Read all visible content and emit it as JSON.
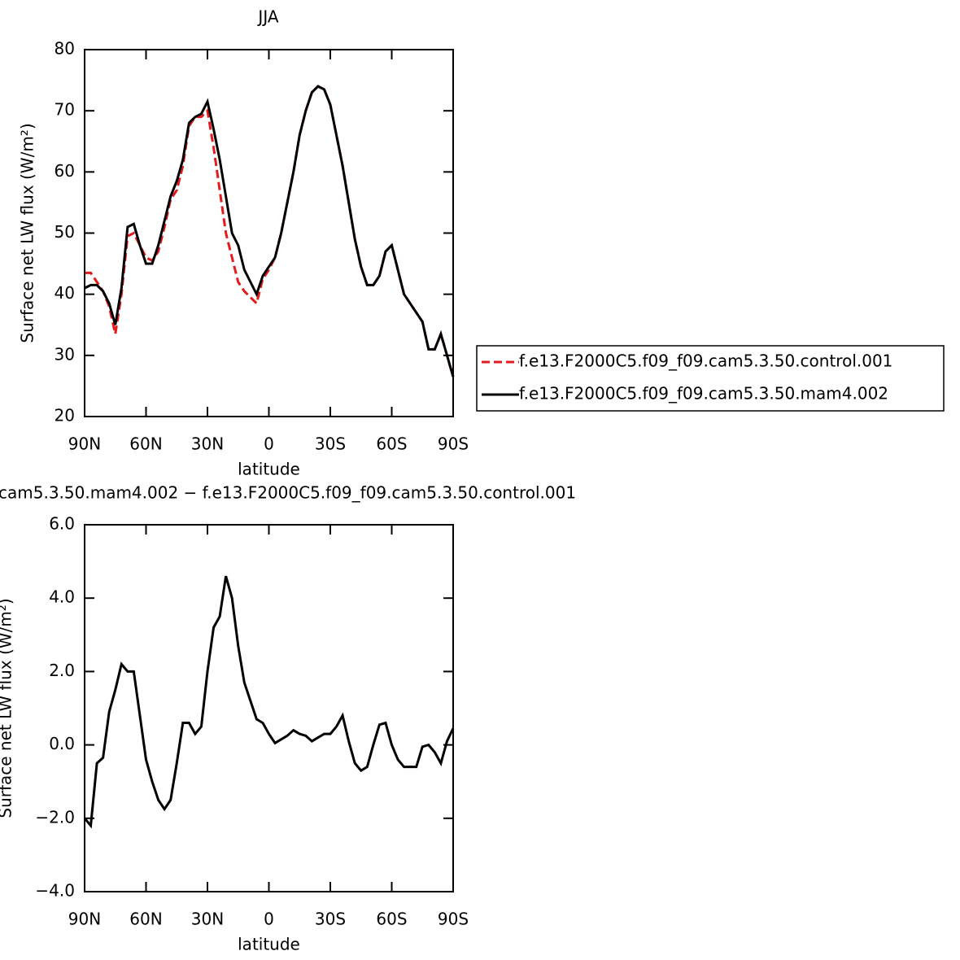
{
  "chart_data": [
    {
      "type": "line",
      "title": "JJA",
      "x_label": "latitude",
      "y_label": "Surface net LW flux (W/m²)",
      "x": [
        90,
        87,
        84,
        81,
        78,
        75,
        72,
        69,
        66,
        63,
        60,
        57,
        54,
        51,
        48,
        45,
        42,
        39,
        36,
        33,
        30,
        27,
        24,
        21,
        18,
        15,
        12,
        9,
        6,
        3,
        0,
        -3,
        -6,
        -9,
        -12,
        -15,
        -18,
        -21,
        -24,
        -27,
        -30,
        -33,
        -36,
        -39,
        -42,
        -45,
        -48,
        -51,
        -54,
        -57,
        -60,
        -63,
        -66,
        -69,
        -72,
        -75,
        -78,
        -81,
        -84,
        -87,
        -90
      ],
      "series": [
        {
          "name": "f.e13.F2000C5.f09_f09.cam5.3.50.control.001",
          "color": "#e41a1c",
          "dash": true,
          "values": [
            43.5,
            43.5,
            42,
            40.5,
            38,
            33.5,
            40,
            49.5,
            50,
            48,
            46,
            45.5,
            47,
            51,
            55.5,
            57,
            61,
            67.5,
            69,
            69,
            70,
            64,
            57,
            50,
            46,
            42,
            40.5,
            39.5,
            38.5,
            42.5,
            44,
            46,
            50,
            55,
            60,
            66,
            70,
            73,
            74,
            73.5,
            71,
            66,
            61,
            55,
            49,
            44.5,
            41.5,
            41.5,
            43,
            47,
            48,
            44,
            40,
            38.5,
            37,
            35.5,
            31,
            31,
            33.5,
            30,
            26.5
          ]
        },
        {
          "name": "f.e13.F2000C5.f09_f09.cam5.3.50.mam4.002",
          "color": "#000000",
          "dash": false,
          "values": [
            41,
            41.5,
            41.5,
            40.5,
            38.5,
            35,
            41,
            51,
            51.5,
            48,
            45,
            45,
            48,
            52,
            56,
            58.5,
            62,
            68,
            69,
            69.5,
            71.5,
            67,
            62,
            56,
            50,
            48,
            44,
            42,
            40,
            43,
            44.5,
            46,
            50,
            55,
            60,
            66,
            70,
            73,
            74,
            73.5,
            71,
            66,
            61,
            55,
            49,
            44.5,
            41.5,
            41.5,
            43,
            47,
            48,
            44,
            40,
            38.5,
            37,
            35.5,
            31,
            31,
            33.5,
            30,
            26.5
          ]
        }
      ],
      "xlim": [
        90,
        -90
      ],
      "xticks": [
        {
          "value": 90,
          "label": "90N"
        },
        {
          "value": 60,
          "label": "60N"
        },
        {
          "value": 30,
          "label": "30N"
        },
        0,
        {
          "value": -30,
          "label": "30S"
        },
        {
          "value": -60,
          "label": "60S"
        },
        {
          "value": -90,
          "label": "90S"
        }
      ],
      "ylim": [
        20,
        80
      ],
      "yticks": [
        20,
        30,
        40,
        50,
        60,
        70,
        80
      ],
      "legend": "right"
    },
    {
      "type": "line",
      "title": "cam5.3.50.mam4.002 − f.e13.F2000C5.f09_f09.cam5.3.50.control.001",
      "x_label": "latitude",
      "y_label": "Surface net LW flux (W/m²)",
      "x": [
        90,
        87,
        84,
        81,
        78,
        75,
        72,
        69,
        66,
        63,
        60,
        57,
        54,
        51,
        48,
        45,
        42,
        39,
        36,
        33,
        30,
        27,
        24,
        21,
        18,
        15,
        12,
        9,
        6,
        3,
        0,
        -3,
        -6,
        -9,
        -12,
        -15,
        -18,
        -21,
        -24,
        -27,
        -30,
        -33,
        -36,
        -39,
        -42,
        -45,
        -48,
        -51,
        -54,
        -57,
        -60,
        -63,
        -66,
        -69,
        -72,
        -75,
        -78,
        -81,
        -84,
        -87,
        -90
      ],
      "series": [
        {
          "color": "#000000",
          "dash": false,
          "values": [
            -2.0,
            -2.2,
            -0.5,
            -0.35,
            0.9,
            1.5,
            2.2,
            2.0,
            2.0,
            0.8,
            -0.4,
            -1.0,
            -1.5,
            -1.75,
            -1.5,
            -0.5,
            0.6,
            0.6,
            0.3,
            0.5,
            2.0,
            3.2,
            3.5,
            4.6,
            4.0,
            2.7,
            1.7,
            1.2,
            0.7,
            0.6,
            0.3,
            0.05,
            0.15,
            0.25,
            0.4,
            0.3,
            0.25,
            0.1,
            0.2,
            0.3,
            0.3,
            0.5,
            0.8,
            0.1,
            -0.5,
            -0.7,
            -0.6,
            0.0,
            0.55,
            0.6,
            0.0,
            -0.4,
            -0.6,
            -0.6,
            -0.6,
            -0.05,
            0.0,
            -0.2,
            -0.5,
            0.1,
            0.45
          ]
        }
      ],
      "xlim": [
        90,
        -90
      ],
      "xticks": [
        {
          "value": 90,
          "label": "90N"
        },
        {
          "value": 60,
          "label": "60N"
        },
        {
          "value": 30,
          "label": "30N"
        },
        0,
        {
          "value": -30,
          "label": "30S"
        },
        {
          "value": -60,
          "label": "60S"
        },
        {
          "value": -90,
          "label": "90S"
        }
      ],
      "ylim": [
        -4,
        6
      ],
      "yticks": [
        {
          "value": -4,
          "label": "−4.0"
        },
        {
          "value": -2,
          "label": "−2.0"
        },
        {
          "value": 0,
          "label": "0.0"
        },
        {
          "value": 2,
          "label": "2.0"
        },
        {
          "value": 4,
          "label": "4.0"
        },
        {
          "value": 6,
          "label": "6.0"
        }
      ]
    }
  ]
}
